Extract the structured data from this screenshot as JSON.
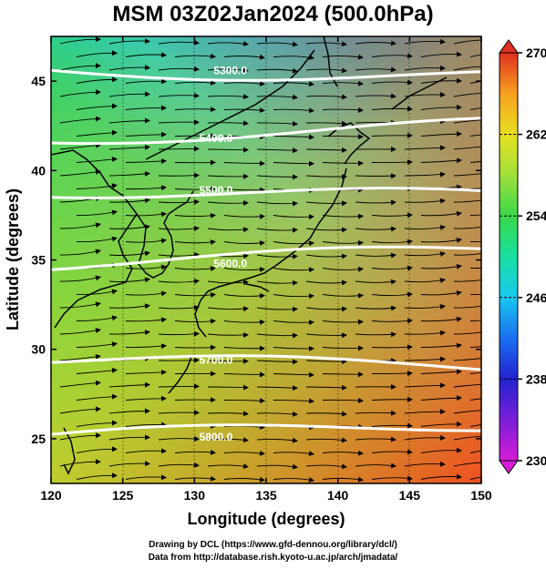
{
  "title": "MSM 03Z02Jan2024 (500.0hPa)",
  "footer": {
    "line1": "Drawing by DCL (https://www.gfd-dennou.org/library/dcl/)",
    "line2": "Data from http://database.rish.kyoto-u.ac.jp/arch/jmadata/"
  },
  "axes": {
    "xlabel": "Longitude (degrees)",
    "ylabel": "Latitude  (degrees)",
    "xlim": [
      120,
      150
    ],
    "ylim": [
      22.5,
      47.5
    ],
    "xticks": [
      120,
      125,
      130,
      135,
      140,
      145,
      150
    ],
    "yticks": [
      25,
      30,
      35,
      40,
      45
    ]
  },
  "colorbar": {
    "min": 230,
    "max": 270,
    "tick_values": [
      230,
      238,
      246,
      254,
      262,
      270
    ],
    "tick_labels": [
      "230",
      "238",
      "246",
      "254",
      "262",
      "270"
    ],
    "colors": [
      "#d81bd8",
      "#7a1fd8",
      "#2222d0",
      "#1a6ef0",
      "#18c8f0",
      "#18e0a0",
      "#3ad84a",
      "#a0e03a",
      "#e8e020",
      "#f8a020",
      "#f06820",
      "#e03020"
    ]
  },
  "height_contours": [
    {
      "label": "5300.0",
      "lon": 132.5,
      "lat": 45.6
    },
    {
      "label": "5400.0",
      "lon": 131.5,
      "lat": 41.8
    },
    {
      "label": "5500.0",
      "lon": 131.5,
      "lat": 38.9
    },
    {
      "label": "5600.0",
      "lon": 132.5,
      "lat": 34.8
    },
    {
      "label": "5700.0",
      "lon": 131.5,
      "lat": 29.4
    },
    {
      "label": "5800.0",
      "lon": 131.5,
      "lat": 25.1
    }
  ]
}
